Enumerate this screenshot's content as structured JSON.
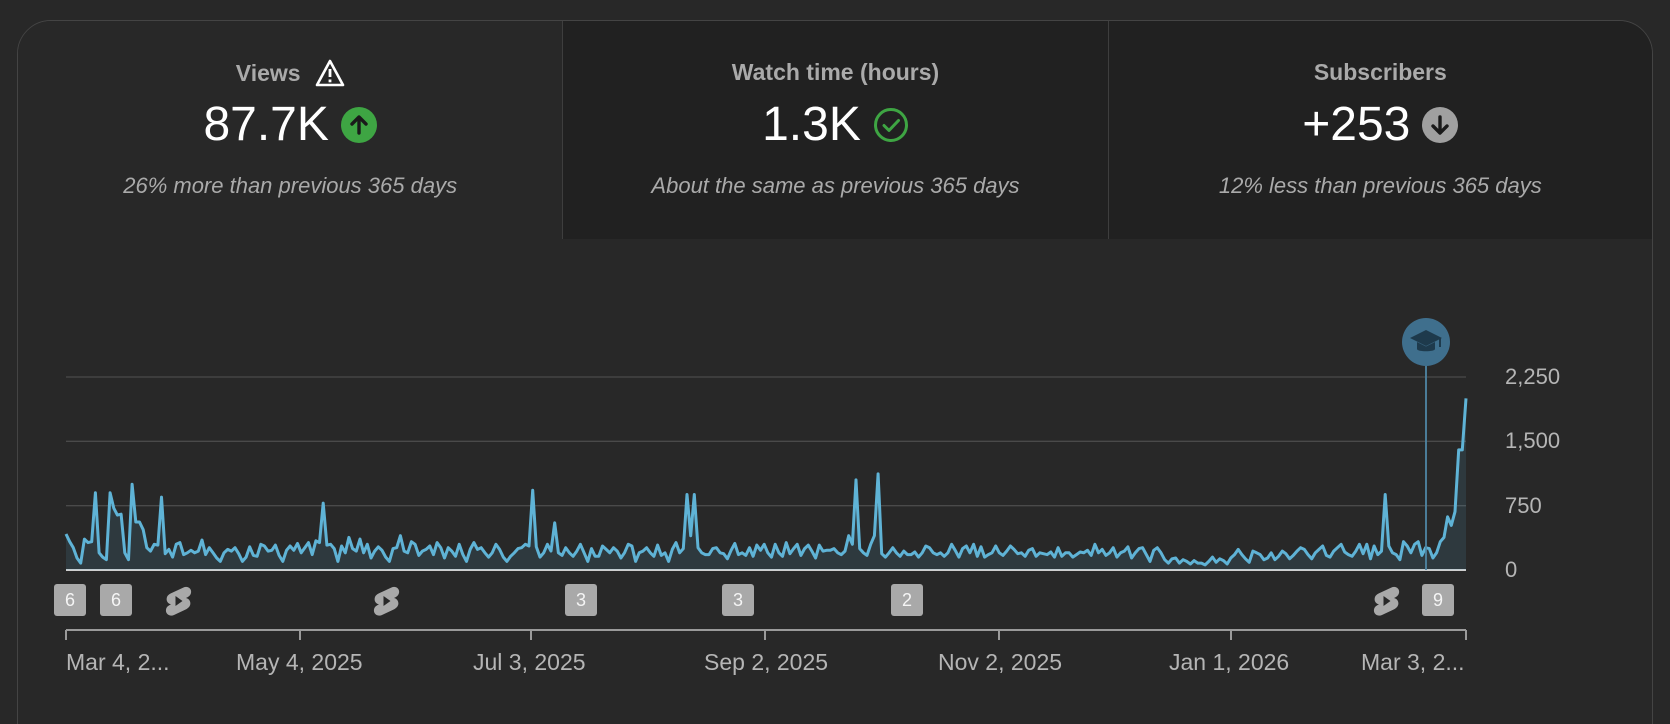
{
  "colors": {
    "accent": "#5fb3d6",
    "up": "#3ea543",
    "neutral_check": "#3ea543",
    "down": "#a0a0a0"
  },
  "tabs": [
    {
      "title": "Views",
      "title_icon": "warning-icon",
      "value": "87.7K",
      "trend_icon": "arrow-up-icon",
      "note": "26% more than previous 365 days"
    },
    {
      "title": "Watch time (hours)",
      "value": "1.3K",
      "trend_icon": "check-circle-icon",
      "note": "About the same as previous 365 days"
    },
    {
      "title": "Subscribers",
      "value": "+253",
      "trend_icon": "arrow-down-icon",
      "note": "12% less than previous 365 days"
    }
  ],
  "chart_data": {
    "type": "area",
    "series": [
      {
        "values": [
          420,
          330,
          260,
          140,
          80,
          360,
          320,
          330,
          900,
          200,
          150,
          120,
          900,
          720,
          640,
          650,
          200,
          120,
          1000,
          560,
          560,
          470,
          260,
          220,
          300,
          290,
          850,
          190,
          240,
          150,
          300,
          320,
          180,
          200,
          230,
          200,
          220,
          350,
          180,
          260,
          200,
          140,
          100,
          200,
          240,
          220,
          260,
          190,
          100,
          150,
          270,
          170,
          160,
          300,
          280,
          220,
          230,
          290,
          170,
          100,
          230,
          280,
          230,
          310,
          200,
          260,
          320,
          180,
          340,
          320,
          780,
          290,
          300,
          250,
          100,
          280,
          200,
          380,
          250,
          220,
          360,
          200,
          300,
          140,
          220,
          270,
          230,
          150,
          100,
          250,
          260,
          400,
          220,
          200,
          330,
          300,
          170,
          220,
          240,
          280,
          180,
          320,
          260,
          140,
          260,
          220,
          160,
          300,
          180,
          100,
          240,
          320,
          240,
          260,
          200,
          150,
          200,
          300,
          240,
          150,
          100,
          160,
          200,
          250,
          260,
          300,
          280,
          930,
          270,
          150,
          200,
          300,
          220,
          550,
          200,
          170,
          260,
          200,
          160,
          220,
          300,
          200,
          100,
          250,
          160,
          160,
          280,
          240,
          200,
          260,
          220,
          140,
          200,
          300,
          280,
          100,
          200,
          220,
          260,
          200,
          160,
          290,
          170,
          200,
          100,
          240,
          320,
          200,
          250,
          880,
          400,
          880,
          260,
          200,
          180,
          180,
          250,
          260,
          200,
          190,
          130,
          230,
          310,
          180,
          200,
          170,
          260,
          160,
          290,
          230,
          300,
          200,
          150,
          300,
          200,
          160,
          320,
          190,
          250,
          300,
          170,
          250,
          290,
          220,
          140,
          290,
          220,
          230,
          230,
          250,
          200,
          180,
          220,
          400,
          300,
          1050,
          250,
          200,
          170,
          300,
          400,
          1120,
          190,
          150,
          200,
          260,
          200,
          160,
          220,
          180,
          180,
          210,
          150,
          200,
          280,
          260,
          200,
          180,
          200,
          160,
          200,
          300,
          230,
          150,
          250,
          280,
          200,
          300,
          160,
          270,
          150,
          180,
          200,
          280,
          200,
          170,
          220,
          280,
          240,
          190,
          200,
          160,
          230,
          250,
          160,
          200,
          190,
          180,
          210,
          150,
          260,
          160,
          200,
          200,
          150,
          180,
          210,
          200,
          230,
          170,
          300,
          200,
          240,
          170,
          200,
          260,
          150,
          200,
          220,
          270,
          140,
          200,
          250,
          260,
          180,
          100,
          230,
          260,
          200,
          120,
          80,
          130,
          140,
          80,
          120,
          100,
          70,
          110,
          80,
          80,
          60,
          100,
          150,
          90,
          130,
          110,
          70,
          140,
          180,
          240,
          180,
          130,
          90,
          220,
          200,
          180,
          120,
          140,
          200,
          120,
          160,
          220,
          190,
          130,
          170,
          220,
          260,
          240,
          180,
          130,
          200,
          240,
          280,
          170,
          150,
          220,
          260,
          300,
          210,
          180,
          160,
          220,
          300,
          190,
          300,
          130,
          280,
          180,
          220,
          880,
          280,
          200,
          180,
          120,
          330,
          280,
          200,
          300,
          330,
          170,
          260,
          250,
          140,
          200,
          330,
          380,
          620,
          520,
          680,
          1400,
          1400,
          2000
        ]
      }
    ],
    "ylim": [
      0,
      2250
    ],
    "y_ticks": [
      "2,250",
      "1,500",
      "750",
      "0"
    ],
    "x_ticks": [
      "Mar 4, 2...",
      "May 4, 2025",
      "Jul 3, 2025",
      "Sep 2, 2025",
      "Nov 2, 2025",
      "Jan 1, 2026",
      "Mar 3, 2..."
    ],
    "grid": true,
    "markers": [
      {
        "type": "badge",
        "label": "6"
      },
      {
        "type": "badge",
        "label": "6"
      },
      {
        "type": "shorts",
        "icon": "shorts-icon"
      },
      {
        "type": "shorts",
        "icon": "shorts-icon"
      },
      {
        "type": "badge",
        "label": "3"
      },
      {
        "type": "badge",
        "label": "3"
      },
      {
        "type": "badge",
        "label": "2"
      },
      {
        "type": "shorts",
        "icon": "shorts-icon"
      },
      {
        "type": "badge",
        "label": "9"
      }
    ],
    "milestone_icon": "graduation-cap-icon"
  }
}
